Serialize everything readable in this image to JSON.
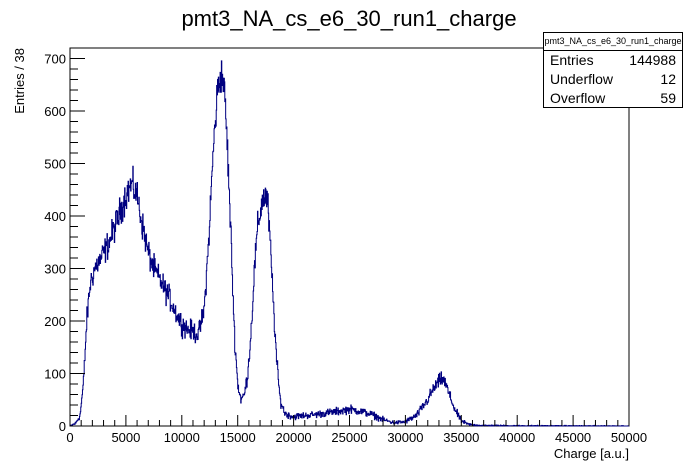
{
  "chart_data": {
    "type": "histogram",
    "title": "pmt3_NA_cs_e6_30_run1_charge",
    "xlabel": "Charge [a.u.]",
    "ylabel": "Entries / 38",
    "xlim": [
      0,
      50000
    ],
    "ylim": [
      0,
      720
    ],
    "xticks": [
      0,
      5000,
      10000,
      15000,
      20000,
      25000,
      30000,
      35000,
      40000,
      45000,
      50000
    ],
    "yticks": [
      0,
      100,
      200,
      300,
      400,
      500,
      600,
      700
    ],
    "line_color": "#000080",
    "grid": false,
    "stats": {
      "name": "pmt3_NA_cs_e6_30_run1_charge",
      "rows": [
        {
          "label": "Entries",
          "value": "144988"
        },
        {
          "label": "Underflow",
          "value": "12"
        },
        {
          "label": "Overflow",
          "value": "59"
        }
      ]
    },
    "envelope": {
      "x": [
        0,
        500,
        900,
        1200,
        1500,
        1800,
        2200,
        2800,
        3500,
        4200,
        5000,
        5500,
        6000,
        6500,
        7000,
        7500,
        8000,
        8500,
        9000,
        9500,
        10000,
        10500,
        11000,
        11500,
        12000,
        12400,
        12800,
        13200,
        13500,
        13700,
        13900,
        14100,
        14400,
        14700,
        15000,
        15300,
        15600,
        15900,
        16200,
        16500,
        16800,
        17200,
        17500,
        17700,
        17900,
        18200,
        18500,
        18800,
        19200,
        19600,
        20000,
        21000,
        22000,
        23000,
        24000,
        25000,
        26000,
        27000,
        28000,
        29000,
        30000,
        31000,
        32000,
        32500,
        33000,
        33300,
        33600,
        34000,
        34500,
        35000,
        35500,
        36000,
        37000,
        40000,
        45000,
        49500,
        50000
      ],
      "y": [
        0,
        5,
        20,
        80,
        200,
        270,
        300,
        320,
        350,
        390,
        440,
        460,
        440,
        380,
        330,
        300,
        280,
        260,
        240,
        215,
        195,
        185,
        180,
        175,
        220,
        350,
        520,
        640,
        670,
        660,
        610,
        520,
        360,
        180,
        80,
        50,
        60,
        100,
        180,
        300,
        380,
        430,
        440,
        420,
        350,
        230,
        120,
        50,
        25,
        20,
        18,
        20,
        22,
        25,
        28,
        32,
        28,
        22,
        12,
        6,
        8,
        20,
        50,
        70,
        85,
        90,
        80,
        55,
        28,
        10,
        4,
        2,
        1,
        0.5,
        0.3,
        0.2,
        0
      ]
    }
  }
}
